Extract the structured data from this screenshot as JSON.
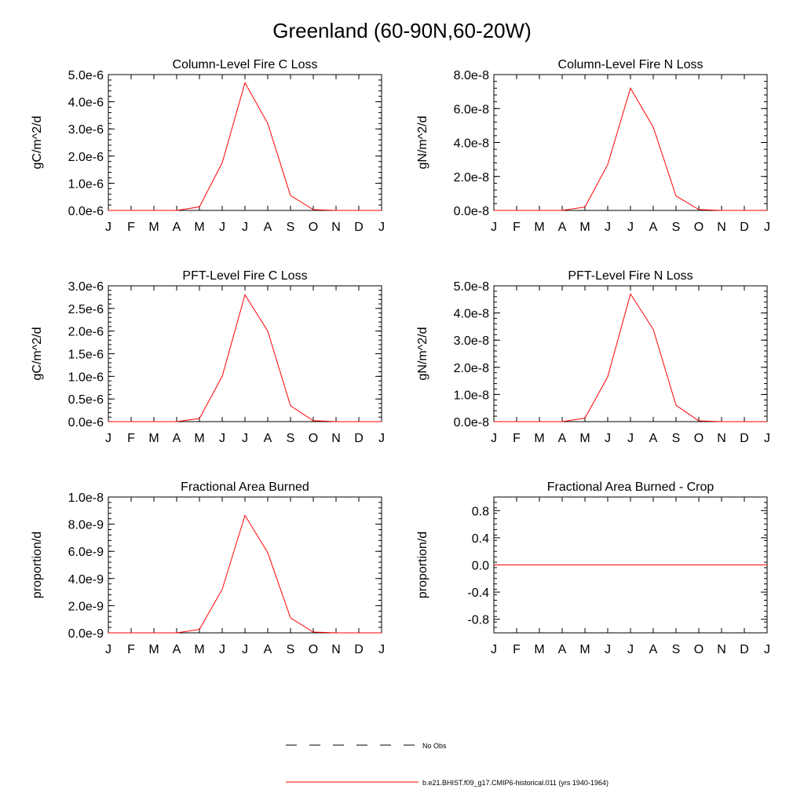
{
  "page_title": "Greenland (60-90N,60-20W)",
  "legend": {
    "items": [
      {
        "label": "No Obs",
        "style": "dashed",
        "color": "#000000"
      },
      {
        "label": "b.e21.BHIST.f09_g17.CMIP6-historical.011 (yrs 1940-1964)",
        "style": "solid",
        "color": "#ff0000"
      }
    ]
  },
  "chart_data": [
    {
      "type": "line",
      "title": "Column-Level Fire C Loss",
      "ylabel": "gC/m^2/d",
      "categories": [
        "J",
        "F",
        "M",
        "A",
        "M",
        "J",
        "J",
        "A",
        "S",
        "O",
        "N",
        "D",
        "J"
      ],
      "ylim": [
        0,
        5e-06
      ],
      "yticks": [
        0,
        1e-06,
        2e-06,
        3e-06,
        4e-06,
        5e-06
      ],
      "ytick_labels": [
        "0.0e-6",
        "1.0e-6",
        "2.0e-6",
        "3.0e-6",
        "4.0e-6",
        "5.0e-6"
      ],
      "series": [
        {
          "color": "#ff0000",
          "values": [
            0,
            0,
            0,
            0,
            1.3e-07,
            1.75e-06,
            4.7e-06,
            3.2e-06,
            5.5e-07,
            3e-08,
            0,
            0,
            0
          ]
        }
      ]
    },
    {
      "type": "line",
      "title": "Column-Level Fire N Loss",
      "ylabel": "gN/m^2/d",
      "categories": [
        "J",
        "F",
        "M",
        "A",
        "M",
        "J",
        "J",
        "A",
        "S",
        "O",
        "N",
        "D",
        "J"
      ],
      "ylim": [
        0,
        8e-08
      ],
      "yticks": [
        0,
        2e-08,
        4e-08,
        6e-08,
        8e-08
      ],
      "ytick_labels": [
        "0.0e-8",
        "2.0e-8",
        "4.0e-8",
        "6.0e-8",
        "8.0e-8"
      ],
      "series": [
        {
          "color": "#ff0000",
          "values": [
            0,
            0,
            0,
            0,
            2e-09,
            2.7e-08,
            7.2e-08,
            4.9e-08,
            8.5e-09,
            5e-10,
            0,
            0,
            0
          ]
        }
      ]
    },
    {
      "type": "line",
      "title": "PFT-Level Fire C Loss",
      "ylabel": "gC/m^2/d",
      "categories": [
        "J",
        "F",
        "M",
        "A",
        "M",
        "J",
        "J",
        "A",
        "S",
        "O",
        "N",
        "D",
        "J"
      ],
      "ylim": [
        0,
        3e-06
      ],
      "yticks": [
        0,
        5e-07,
        1e-06,
        1.5e-06,
        2e-06,
        2.5e-06,
        3e-06
      ],
      "ytick_labels": [
        "0.0e-6",
        "0.5e-6",
        "1.0e-6",
        "1.5e-6",
        "2.0e-6",
        "2.5e-6",
        "3.0e-6"
      ],
      "series": [
        {
          "color": "#ff0000",
          "values": [
            0,
            0,
            0,
            0,
            7e-08,
            1e-06,
            2.8e-06,
            2e-06,
            3.5e-07,
            2e-08,
            0,
            0,
            0
          ]
        }
      ]
    },
    {
      "type": "line",
      "title": "PFT-Level Fire N Loss",
      "ylabel": "gN/m^2/d",
      "categories": [
        "J",
        "F",
        "M",
        "A",
        "M",
        "J",
        "J",
        "A",
        "S",
        "O",
        "N",
        "D",
        "J"
      ],
      "ylim": [
        0,
        5e-08
      ],
      "yticks": [
        0,
        1e-08,
        2e-08,
        3e-08,
        4e-08,
        5e-08
      ],
      "ytick_labels": [
        "0.0e-8",
        "1.0e-8",
        "2.0e-8",
        "3.0e-8",
        "4.0e-8",
        "5.0e-8"
      ],
      "series": [
        {
          "color": "#ff0000",
          "values": [
            0,
            0,
            0,
            0,
            1.3e-09,
            1.65e-08,
            4.7e-08,
            3.4e-08,
            6e-09,
            3e-10,
            0,
            0,
            0
          ]
        }
      ]
    },
    {
      "type": "line",
      "title": "Fractional Area Burned",
      "ylabel": "proportion/d",
      "categories": [
        "J",
        "F",
        "M",
        "A",
        "M",
        "J",
        "J",
        "A",
        "S",
        "O",
        "N",
        "D",
        "J"
      ],
      "ylim": [
        0,
        1e-08
      ],
      "yticks": [
        0,
        2e-09,
        4e-09,
        6e-09,
        8e-09,
        1e-08
      ],
      "ytick_labels": [
        "0.0e-9",
        "2.0e-9",
        "4.0e-9",
        "6.0e-9",
        "8.0e-9",
        "1.0e-8"
      ],
      "series": [
        {
          "color": "#ff0000",
          "values": [
            0,
            0,
            0,
            0,
            2.5e-10,
            3.2e-09,
            8.65e-09,
            5.9e-09,
            1.1e-09,
            6e-11,
            0,
            0,
            0
          ]
        }
      ]
    },
    {
      "type": "line",
      "title": "Fractional Area Burned - Crop",
      "ylabel": "proportion/d",
      "categories": [
        "J",
        "F",
        "M",
        "A",
        "M",
        "J",
        "J",
        "A",
        "S",
        "O",
        "N",
        "D",
        "J"
      ],
      "ylim": [
        -1.0,
        1.0
      ],
      "yticks": [
        -0.8,
        -0.4,
        0.0,
        0.4,
        0.8
      ],
      "ytick_labels": [
        "-0.8",
        "-0.4",
        "0.0",
        "0.4",
        "0.8"
      ],
      "series": [
        {
          "color": "#ff0000",
          "values": [
            0,
            0,
            0,
            0,
            0,
            0,
            0,
            0,
            0,
            0,
            0,
            0,
            0
          ]
        }
      ]
    }
  ]
}
